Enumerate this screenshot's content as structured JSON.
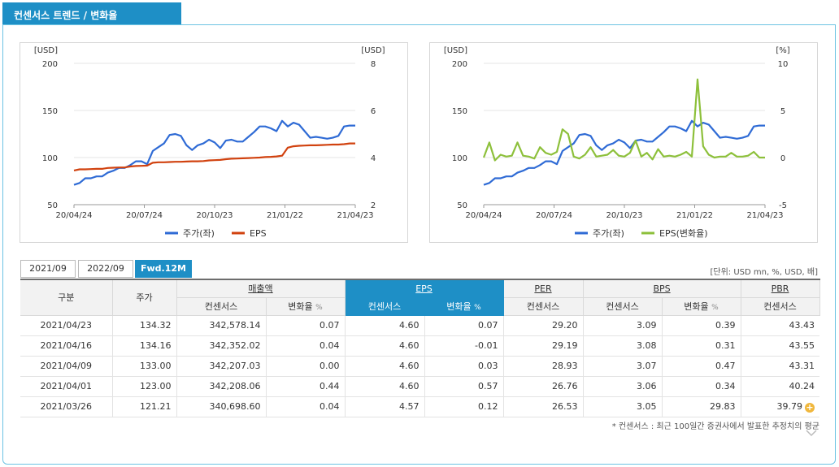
{
  "header": {
    "title": "컨센서스 트렌드 / 변화율"
  },
  "colors": {
    "accent": "#1e8fc6",
    "price_line": "#2f6bd5",
    "eps_line": "#d1420f",
    "eps_change_line": "#8dc03b"
  },
  "chart_data": [
    {
      "type": "line",
      "title": "",
      "x_tick_labels": [
        "20/04/24",
        "20/07/24",
        "20/10/23",
        "21/01/22",
        "21/04/23"
      ],
      "y_left": {
        "unit": "[USD]",
        "ticks": [
          50,
          100,
          150,
          200
        ],
        "ylim": [
          50,
          200
        ]
      },
      "y_right": {
        "unit": "[USD]",
        "ticks": [
          2,
          4,
          6,
          8
        ],
        "ylim": [
          2,
          8
        ]
      },
      "legend_position": "bottom",
      "series": [
        {
          "name": "주가(좌)",
          "axis": "left",
          "color": "#2f6bd5",
          "values": [
            71,
            73,
            78,
            78,
            80,
            80,
            84,
            86,
            89,
            89,
            92,
            96,
            96,
            93,
            107,
            111,
            115,
            124,
            125,
            123,
            113,
            108,
            113,
            115,
            119,
            116,
            110,
            118,
            119,
            117,
            117,
            122,
            127,
            133,
            133,
            131,
            128,
            139,
            133,
            137,
            135,
            128,
            121,
            122,
            121,
            120,
            121,
            123,
            133,
            134,
            134
          ]
        },
        {
          "name": "EPS",
          "axis": "right",
          "color": "#d1420f",
          "values": [
            3.45,
            3.5,
            3.5,
            3.51,
            3.52,
            3.52,
            3.56,
            3.57,
            3.58,
            3.58,
            3.62,
            3.64,
            3.65,
            3.66,
            3.78,
            3.8,
            3.8,
            3.81,
            3.82,
            3.82,
            3.83,
            3.84,
            3.84,
            3.85,
            3.88,
            3.89,
            3.9,
            3.93,
            3.95,
            3.96,
            3.97,
            3.98,
            3.99,
            4.0,
            4.02,
            4.03,
            4.05,
            4.08,
            4.42,
            4.48,
            4.5,
            4.51,
            4.52,
            4.52,
            4.53,
            4.54,
            4.55,
            4.55,
            4.57,
            4.6,
            4.6
          ]
        }
      ]
    },
    {
      "type": "line",
      "title": "",
      "x_tick_labels": [
        "20/04/24",
        "20/07/24",
        "20/10/23",
        "21/01/22",
        "21/04/23"
      ],
      "y_left": {
        "unit": "[USD]",
        "ticks": [
          50,
          100,
          150,
          200
        ],
        "ylim": [
          50,
          200
        ]
      },
      "y_right": {
        "unit": "[%]",
        "ticks": [
          -5,
          0,
          5,
          10
        ],
        "ylim": [
          -5,
          10
        ]
      },
      "legend_position": "bottom",
      "series": [
        {
          "name": "주가(좌)",
          "axis": "left",
          "color": "#2f6bd5",
          "values": [
            71,
            73,
            78,
            78,
            80,
            80,
            84,
            86,
            89,
            89,
            92,
            96,
            96,
            93,
            107,
            111,
            115,
            124,
            125,
            123,
            113,
            108,
            113,
            115,
            119,
            116,
            110,
            118,
            119,
            117,
            117,
            122,
            127,
            133,
            133,
            131,
            128,
            139,
            133,
            137,
            135,
            128,
            121,
            122,
            121,
            120,
            121,
            123,
            133,
            134,
            134
          ]
        },
        {
          "name": "EPS(변화율)",
          "axis": "right",
          "color": "#8dc03b",
          "values": [
            0.0,
            1.6,
            -0.3,
            0.3,
            0.1,
            0.2,
            1.6,
            0.2,
            0.1,
            -0.1,
            1.1,
            0.5,
            0.3,
            0.6,
            3.0,
            2.5,
            0.1,
            -0.1,
            0.3,
            1.1,
            0.1,
            0.2,
            0.3,
            0.8,
            0.2,
            0.1,
            0.5,
            1.8,
            0.1,
            0.5,
            -0.2,
            0.9,
            0.1,
            0.2,
            0.1,
            0.3,
            0.6,
            0.1,
            8.3,
            1.2,
            0.3,
            0.0,
            0.1,
            0.1,
            0.5,
            0.1,
            0.1,
            0.2,
            0.6,
            0.0,
            0.0
          ]
        }
      ]
    }
  ],
  "period_tabs": [
    {
      "label": "2021/09",
      "active": false
    },
    {
      "label": "2022/09",
      "active": false
    },
    {
      "label": "Fwd.12M",
      "active": true
    }
  ],
  "unit_note": "[단위: USD mn, %, USD, 배]",
  "table": {
    "head": {
      "division": "구분",
      "price": "주가",
      "revenue": "매출액",
      "eps": "EPS",
      "per": "PER",
      "bps": "BPS",
      "pbr": "PBR",
      "consensus": "컨센서스",
      "change": "변화율",
      "pct": "%"
    },
    "rows": [
      [
        "2021/04/23",
        "134.32",
        "342,578.14",
        "0.07",
        "4.60",
        "0.07",
        "29.20",
        "3.09",
        "0.39",
        "43.43"
      ],
      [
        "2021/04/16",
        "134.16",
        "342,352.02",
        "0.04",
        "4.60",
        "-0.01",
        "29.19",
        "3.08",
        "0.31",
        "43.55"
      ],
      [
        "2021/04/09",
        "133.00",
        "342,207.03",
        "0.00",
        "4.60",
        "0.03",
        "28.93",
        "3.07",
        "0.47",
        "43.31"
      ],
      [
        "2021/04/01",
        "123.00",
        "342,208.06",
        "0.44",
        "4.60",
        "0.57",
        "26.76",
        "3.06",
        "0.34",
        "40.24"
      ],
      [
        "2021/03/26",
        "121.21",
        "340,698.60",
        "0.04",
        "4.57",
        "0.12",
        "26.53",
        "3.05",
        "29.83",
        "39.79"
      ]
    ]
  },
  "footnote": "* 컨센서스 : 최근 100일간 증권사에서 발표한 추정치의 평균",
  "icons": {
    "expand": "plus-circle-icon",
    "more": "chevron-down-icon"
  }
}
